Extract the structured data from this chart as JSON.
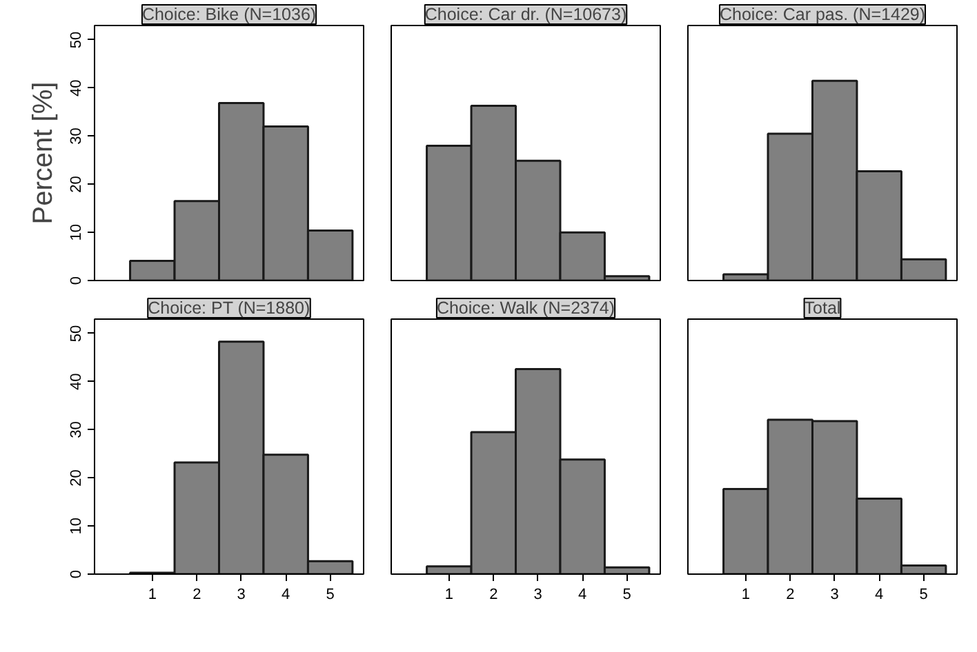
{
  "chart_data": [
    {
      "type": "bar",
      "title": "Choice: Bike (N=1036)",
      "ylabel": "Percent [%]",
      "x": [
        1,
        2,
        3,
        4,
        5
      ],
      "values": [
        4.1,
        16.5,
        36.9,
        32.0,
        10.4
      ],
      "color": "#808080",
      "xlim": [
        -0.3,
        5.75
      ],
      "ylim": [
        0,
        53
      ],
      "xticks": [
        1,
        2,
        3,
        4,
        5
      ],
      "yticks": [
        0,
        10,
        20,
        30,
        40,
        50
      ],
      "tick_labels": "y",
      "grid": false
    },
    {
      "type": "bar",
      "title": "Choice: Car dr. (N=10673)",
      "x": [
        1,
        2,
        3,
        4,
        5
      ],
      "values": [
        28.0,
        36.3,
        24.9,
        10.0,
        0.9
      ],
      "color": "#808080",
      "xlim": [
        -0.3,
        5.75
      ],
      "ylim": [
        0,
        53
      ],
      "xticks": [
        1,
        2,
        3,
        4,
        5
      ],
      "yticks": [
        0,
        10,
        20,
        30,
        40,
        50
      ],
      "tick_labels": false,
      "grid": false
    },
    {
      "type": "bar",
      "title": "Choice: Car pas. (N=1429)",
      "x": [
        1,
        2,
        3,
        4,
        5
      ],
      "values": [
        1.3,
        30.5,
        41.5,
        22.7,
        4.4
      ],
      "color": "#808080",
      "xlim": [
        -0.3,
        5.75
      ],
      "ylim": [
        0,
        53
      ],
      "xticks": [
        1,
        2,
        3,
        4,
        5
      ],
      "yticks": [
        0,
        10,
        20,
        30,
        40,
        50
      ],
      "tick_labels": false,
      "grid": false
    },
    {
      "type": "bar",
      "title": "Choice: PT (N=1880)",
      "x": [
        1,
        2,
        3,
        4,
        5
      ],
      "values": [
        0.3,
        23.2,
        48.3,
        24.8,
        2.7
      ],
      "color": "#808080",
      "xlim": [
        -0.3,
        5.75
      ],
      "ylim": [
        0,
        53
      ],
      "xticks": [
        1,
        2,
        3,
        4,
        5
      ],
      "yticks": [
        0,
        10,
        20,
        30,
        40,
        50
      ],
      "grid": false
    },
    {
      "type": "bar",
      "title": "Choice: Walk (N=2374)",
      "x": [
        1,
        2,
        3,
        4,
        5
      ],
      "values": [
        1.6,
        29.5,
        42.6,
        23.8,
        1.4
      ],
      "color": "#808080",
      "xlim": [
        -0.3,
        5.75
      ],
      "ylim": [
        0,
        53
      ],
      "xticks": [
        1,
        2,
        3,
        4,
        5
      ],
      "yticks": [
        0,
        10,
        20,
        30,
        40,
        50
      ],
      "tick_labels": "x",
      "grid": false
    },
    {
      "type": "bar",
      "title": "Total",
      "x": [
        1,
        2,
        3,
        4,
        5
      ],
      "values": [
        17.7,
        32.1,
        31.8,
        15.7,
        1.8
      ],
      "color": "#808080",
      "xlim": [
        -0.3,
        5.75
      ],
      "ylim": [
        0,
        53
      ],
      "xticks": [
        1,
        2,
        3,
        4,
        5
      ],
      "yticks": [
        0,
        10,
        20,
        30,
        40,
        50
      ],
      "tick_labels": "x",
      "grid": false
    }
  ]
}
